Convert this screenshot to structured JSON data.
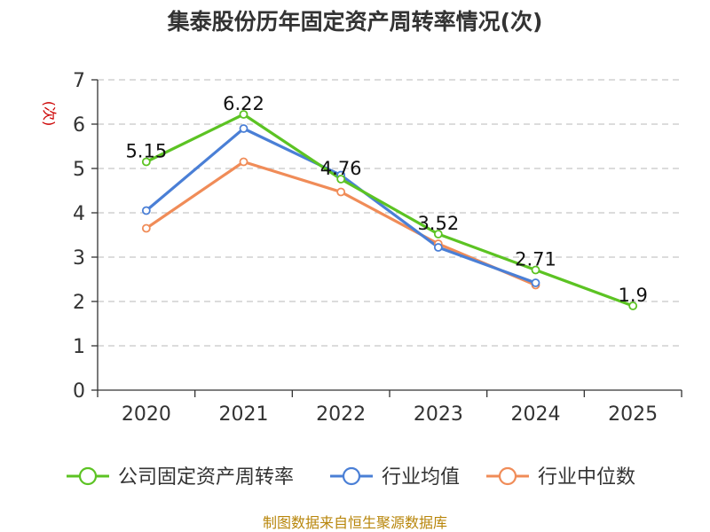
{
  "chart_data": {
    "type": "line",
    "title": "集泰股份历年固定资产周转率情况(次)",
    "ylabel": "(次)",
    "xlabel": "",
    "categories": [
      "2020",
      "2021",
      "2022",
      "2023",
      "2024",
      "2025"
    ],
    "y_ticks": [
      "0",
      "1",
      "2",
      "3",
      "4",
      "5",
      "6",
      "7"
    ],
    "ylim": [
      0,
      7
    ],
    "grid": true,
    "legend_position": "bottom",
    "series": [
      {
        "name": "公司固定资产周转率",
        "color": "#5cc323",
        "values": [
          5.15,
          6.22,
          4.76,
          3.52,
          2.71,
          1.9
        ],
        "labels": [
          "5.15",
          "6.22",
          "4.76",
          "3.52",
          "2.71",
          "1.9"
        ]
      },
      {
        "name": "行业均值",
        "color": "#4a7fd6",
        "values": [
          4.05,
          5.9,
          4.85,
          3.22,
          2.42,
          null
        ]
      },
      {
        "name": "行业中位数",
        "color": "#f08c58",
        "values": [
          3.65,
          5.15,
          4.47,
          3.3,
          2.37,
          null
        ]
      }
    ],
    "source": "制图数据来自恒生聚源数据库",
    "ylabel_color": "#cc0000",
    "source_color": "#b8860b"
  }
}
